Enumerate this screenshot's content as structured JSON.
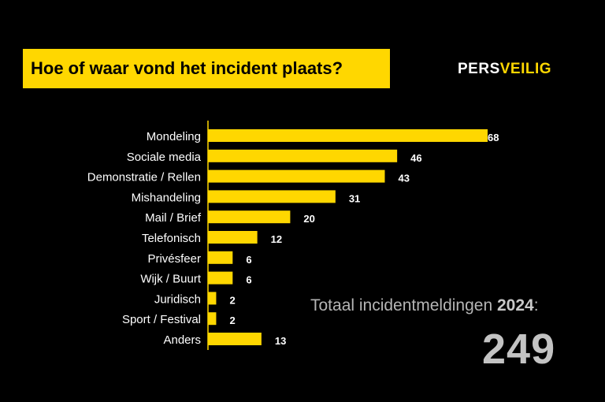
{
  "title": "Hoe of waar vond het incident plaats?",
  "logo": {
    "part1": "PERS",
    "part2": "VEILIG"
  },
  "total": {
    "label": "Totaal incidentmeldingen ",
    "year": "2024",
    "suffix": ":",
    "value": "249"
  },
  "colors": {
    "bar": "#ffd700",
    "background": "#000000",
    "label": "#ffffff"
  },
  "chart_data": {
    "type": "bar",
    "orientation": "horizontal",
    "title": "Hoe of waar vond het incident plaats?",
    "categories": [
      "Mondeling",
      "Sociale media",
      "Demonstratie / Rellen",
      "Mishandeling",
      "Mail / Brief",
      "Telefonisch",
      "Privésfeer",
      "Wijk / Buurt",
      "Juridisch",
      "Sport / Festival",
      "Anders"
    ],
    "values": [
      68,
      46,
      43,
      31,
      20,
      12,
      6,
      6,
      2,
      2,
      13
    ],
    "xlim": [
      0,
      68
    ],
    "grid": false,
    "legend": "none"
  }
}
